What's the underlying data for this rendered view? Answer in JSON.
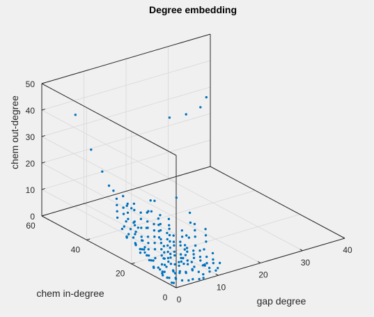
{
  "chart_data": {
    "type": "scatter",
    "title": "Degree embedding",
    "xlabel": "gap degree",
    "ylabel": "chem in-degree",
    "zlabel": "chem out-degree",
    "xlim": [
      0,
      40
    ],
    "ylim": [
      0,
      60
    ],
    "zlim": [
      0,
      50
    ],
    "xticks": [
      "0",
      "10",
      "20",
      "30",
      "40"
    ],
    "yticks": [
      "0",
      "20",
      "40",
      "60"
    ],
    "zticks": [
      "0",
      "10",
      "20",
      "30",
      "40",
      "50"
    ],
    "grid": true,
    "marker_color": "#0072bd",
    "points": [
      [
        0,
        45,
        45
      ],
      [
        0,
        38,
        35
      ],
      [
        0,
        33,
        29
      ],
      [
        0,
        30,
        25
      ],
      [
        0,
        28,
        24
      ],
      [
        0,
        22,
        21
      ],
      [
        0,
        20,
        21
      ],
      [
        0,
        19,
        16
      ],
      [
        0,
        17,
        15
      ],
      [
        0,
        18,
        13
      ],
      [
        0,
        15,
        11
      ],
      [
        0,
        14,
        9
      ],
      [
        2,
        17,
        14
      ],
      [
        4,
        20,
        18
      ],
      [
        25,
        50,
        30
      ],
      [
        30,
        52,
        28
      ],
      [
        35,
        55,
        27
      ],
      [
        38,
        58,
        28
      ],
      [
        12,
        34,
        12
      ],
      [
        14,
        36,
        10
      ],
      [
        16,
        30,
        13
      ],
      [
        16,
        24,
        10
      ],
      [
        14,
        20,
        9
      ],
      [
        12,
        18,
        6
      ],
      [
        0,
        6,
        2
      ],
      [
        1,
        5,
        1
      ],
      [
        2,
        4,
        1
      ],
      [
        3,
        3,
        0
      ],
      [
        4,
        2,
        0
      ],
      [
        5,
        2,
        0
      ],
      [
        6,
        1,
        0
      ],
      [
        7,
        1,
        0
      ],
      [
        1,
        8,
        2
      ],
      [
        2,
        9,
        1
      ],
      [
        3,
        10,
        2
      ],
      [
        0,
        10,
        3
      ],
      [
        1,
        12,
        2
      ],
      [
        2,
        11,
        1
      ],
      [
        3,
        7,
        2
      ],
      [
        4,
        6,
        1
      ],
      [
        5,
        5,
        1
      ],
      [
        6,
        4,
        2
      ],
      [
        7,
        6,
        1
      ],
      [
        8,
        3,
        0
      ],
      [
        9,
        2,
        1
      ],
      [
        0,
        12,
        5
      ],
      [
        1,
        13,
        4
      ],
      [
        2,
        14,
        3
      ],
      [
        3,
        12,
        2
      ],
      [
        4,
        11,
        3
      ],
      [
        5,
        10,
        2
      ],
      [
        6,
        9,
        3
      ],
      [
        7,
        8,
        2
      ],
      [
        8,
        7,
        1
      ],
      [
        9,
        5,
        2
      ],
      [
        10,
        4,
        1
      ],
      [
        11,
        3,
        0
      ],
      [
        1,
        15,
        5
      ],
      [
        2,
        16,
        4
      ],
      [
        3,
        15,
        3
      ],
      [
        4,
        14,
        4
      ],
      [
        5,
        13,
        3
      ],
      [
        6,
        12,
        4
      ],
      [
        7,
        11,
        3
      ],
      [
        8,
        10,
        2
      ],
      [
        9,
        9,
        3
      ],
      [
        10,
        8,
        2
      ],
      [
        11,
        7,
        1
      ],
      [
        12,
        6,
        1
      ],
      [
        0,
        16,
        6
      ],
      [
        1,
        18,
        6
      ],
      [
        2,
        19,
        5
      ],
      [
        3,
        18,
        5
      ],
      [
        4,
        17,
        5
      ],
      [
        5,
        16,
        5
      ],
      [
        6,
        15,
        4
      ],
      [
        7,
        14,
        4
      ],
      [
        8,
        13,
        3
      ],
      [
        9,
        12,
        4
      ],
      [
        10,
        11,
        3
      ],
      [
        11,
        10,
        2
      ],
      [
        12,
        9,
        2
      ],
      [
        13,
        8,
        1
      ],
      [
        1,
        20,
        7
      ],
      [
        2,
        22,
        6
      ],
      [
        3,
        21,
        7
      ],
      [
        4,
        20,
        6
      ],
      [
        5,
        19,
        6
      ],
      [
        6,
        18,
        6
      ],
      [
        7,
        17,
        5
      ],
      [
        8,
        16,
        5
      ],
      [
        9,
        15,
        5
      ],
      [
        10,
        14,
        4
      ],
      [
        11,
        13,
        3
      ],
      [
        12,
        12,
        3
      ],
      [
        0,
        22,
        9
      ],
      [
        1,
        24,
        8
      ],
      [
        2,
        25,
        8
      ],
      [
        3,
        24,
        8
      ],
      [
        4,
        23,
        7
      ],
      [
        5,
        22,
        7
      ],
      [
        6,
        21,
        7
      ],
      [
        7,
        20,
        6
      ],
      [
        8,
        19,
        6
      ],
      [
        9,
        18,
        5
      ],
      [
        10,
        17,
        5
      ],
      [
        2,
        27,
        10
      ],
      [
        3,
        26,
        9
      ],
      [
        4,
        26,
        10
      ],
      [
        5,
        25,
        9
      ],
      [
        6,
        24,
        9
      ],
      [
        7,
        23,
        8
      ],
      [
        8,
        22,
        8
      ],
      [
        9,
        21,
        7
      ],
      [
        10,
        20,
        6
      ],
      [
        3,
        28,
        11
      ],
      [
        4,
        29,
        11
      ],
      [
        5,
        28,
        10
      ],
      [
        6,
        27,
        11
      ],
      [
        7,
        26,
        10
      ],
      [
        8,
        25,
        9
      ],
      [
        9,
        24,
        9
      ],
      [
        4,
        31,
        12
      ],
      [
        5,
        31,
        12
      ],
      [
        6,
        30,
        13
      ],
      [
        7,
        29,
        12
      ],
      [
        8,
        28,
        12
      ],
      [
        5,
        33,
        13
      ],
      [
        6,
        33,
        14
      ],
      [
        7,
        32,
        14
      ],
      [
        3,
        20,
        4
      ],
      [
        5,
        15,
        2
      ],
      [
        7,
        12,
        1
      ],
      [
        9,
        10,
        1
      ],
      [
        11,
        8,
        0
      ],
      [
        2,
        10,
        0
      ],
      [
        4,
        8,
        0
      ],
      [
        6,
        7,
        0
      ],
      [
        8,
        5,
        0
      ],
      [
        10,
        6,
        1
      ],
      [
        12,
        4,
        0
      ],
      [
        13,
        5,
        1
      ],
      [
        1,
        3,
        0
      ],
      [
        0,
        2,
        1
      ],
      [
        0,
        4,
        2
      ],
      [
        0,
        8,
        4
      ],
      [
        0,
        14,
        7
      ],
      [
        0,
        18,
        8
      ],
      [
        1,
        21,
        9
      ],
      [
        1,
        26,
        10
      ],
      [
        2,
        30,
        12
      ],
      [
        3,
        32,
        13
      ],
      [
        4,
        34,
        14
      ],
      [
        5,
        36,
        15
      ],
      [
        6,
        35,
        16
      ],
      [
        2,
        5,
        3
      ],
      [
        3,
        8,
        4
      ],
      [
        4,
        10,
        5
      ],
      [
        5,
        12,
        5
      ],
      [
        6,
        14,
        6
      ],
      [
        7,
        16,
        7
      ],
      [
        8,
        18,
        8
      ],
      [
        9,
        20,
        9
      ],
      [
        10,
        22,
        9
      ],
      [
        11,
        24,
        10
      ],
      [
        12,
        14,
        4
      ],
      [
        13,
        12,
        3
      ],
      [
        14,
        10,
        2
      ],
      [
        13,
        16,
        6
      ],
      [
        14,
        18,
        7
      ],
      [
        15,
        20,
        8
      ],
      [
        11,
        18,
        6
      ],
      [
        12,
        20,
        7
      ],
      [
        10,
        26,
        11
      ],
      [
        9,
        28,
        12
      ],
      [
        1,
        7,
        5
      ],
      [
        2,
        9,
        6
      ],
      [
        3,
        11,
        7
      ],
      [
        4,
        13,
        8
      ],
      [
        5,
        17,
        9
      ],
      [
        6,
        19,
        10
      ],
      [
        7,
        21,
        11
      ],
      [
        8,
        23,
        12
      ],
      [
        1,
        2,
        2
      ],
      [
        3,
        4,
        3
      ],
      [
        5,
        6,
        4
      ],
      [
        7,
        9,
        5
      ],
      [
        9,
        13,
        6
      ],
      [
        11,
        15,
        7
      ],
      [
        14,
        13,
        5
      ],
      [
        15,
        15,
        6
      ],
      [
        16,
        17,
        7
      ],
      [
        6,
        10,
        1
      ],
      [
        8,
        12,
        2
      ],
      [
        10,
        15,
        3
      ]
    ]
  }
}
